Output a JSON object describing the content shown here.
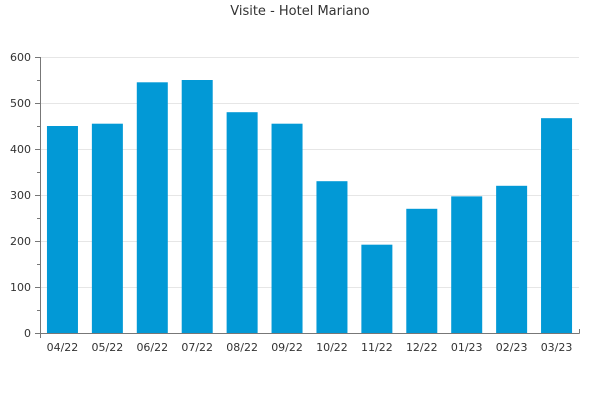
{
  "chart_data": {
    "type": "bar",
    "title": "Visite - Hotel Mariano",
    "xlabel": "",
    "ylabel": "",
    "categories": [
      "04/22",
      "05/22",
      "06/22",
      "07/22",
      "08/22",
      "09/22",
      "10/22",
      "11/22",
      "12/22",
      "01/23",
      "02/23",
      "03/23"
    ],
    "values": [
      450,
      455,
      545,
      550,
      480,
      455,
      330,
      192,
      270,
      297,
      320,
      467
    ],
    "ylim": [
      0,
      600
    ],
    "yticks": [
      0,
      100,
      200,
      300,
      400,
      500,
      600
    ],
    "grid": true,
    "legend": "none",
    "colors": {
      "bar": "#0299d6",
      "grid": "#e6e6e6",
      "axis": "#777777",
      "text": "#333333"
    }
  }
}
